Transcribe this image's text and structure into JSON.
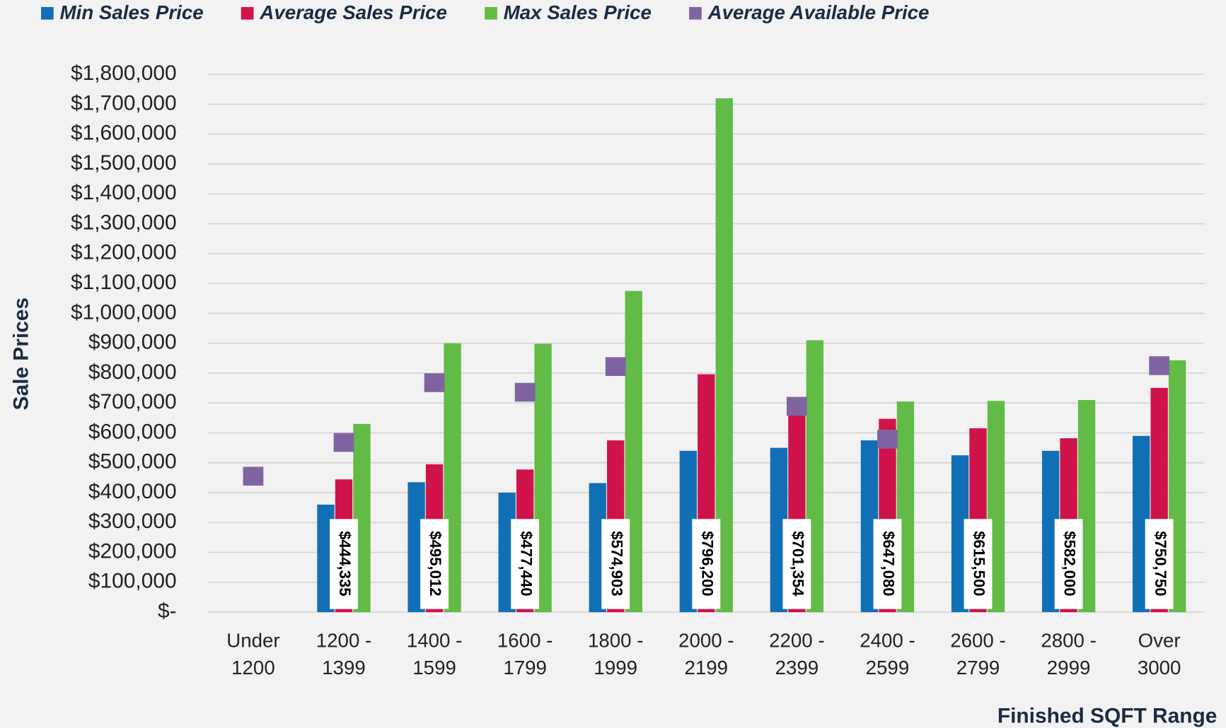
{
  "chart_data": {
    "type": "bar",
    "ylabel": "Sale Prices",
    "xlabel": "Finished SQFT Range",
    "categories": [
      [
        "Under",
        "1200"
      ],
      [
        "1200 -",
        "1399"
      ],
      [
        "1400 -",
        "1599"
      ],
      [
        "1600 -",
        "1799"
      ],
      [
        "1800 -",
        "1999"
      ],
      [
        "2000 -",
        "2199"
      ],
      [
        "2200 -",
        "2399"
      ],
      [
        "2400 -",
        "2599"
      ],
      [
        "2600 -",
        "2799"
      ],
      [
        "2800 -",
        "2999"
      ],
      [
        "Over",
        "3000"
      ]
    ],
    "series": [
      {
        "name": "Min Sales Price",
        "color": "#1170b5",
        "values": [
          null,
          360000,
          435000,
          400000,
          432000,
          540000,
          550000,
          575000,
          525000,
          540000,
          590000
        ]
      },
      {
        "name": "Average Sales Price",
        "color": "#d0134a",
        "values": [
          null,
          444335,
          495012,
          477440,
          574903,
          796200,
          701354,
          647080,
          615500,
          582000,
          750750
        ],
        "value_labels": [
          null,
          "$444,335",
          "$495,012",
          "$477,440",
          "$574,903",
          "$796,200",
          "$701,354",
          "$647,080",
          "$615,500",
          "$582,000",
          "$750,750"
        ]
      },
      {
        "name": "Max Sales Price",
        "color": "#62bb46",
        "values": [
          null,
          630000,
          900000,
          898000,
          1075000,
          1720000,
          910000,
          705000,
          707000,
          710000,
          843000
        ]
      },
      {
        "name": "Average Available Price",
        "color": "#8064a2",
        "marker": "square",
        "values": [
          455000,
          568000,
          768000,
          736000,
          822000,
          null,
          689000,
          579000,
          null,
          null,
          825000
        ]
      }
    ],
    "ylim": [
      0,
      1800000
    ],
    "yticks": [
      {
        "value": 0,
        "label": "$-"
      },
      {
        "value": 100000,
        "label": "$100,000"
      },
      {
        "value": 200000,
        "label": "$200,000"
      },
      {
        "value": 300000,
        "label": "$300,000"
      },
      {
        "value": 400000,
        "label": "$400,000"
      },
      {
        "value": 500000,
        "label": "$500,000"
      },
      {
        "value": 600000,
        "label": "$600,000"
      },
      {
        "value": 700000,
        "label": "$700,000"
      },
      {
        "value": 800000,
        "label": "$800,000"
      },
      {
        "value": 900000,
        "label": "$900,000"
      },
      {
        "value": 1000000,
        "label": "$1,000,000"
      },
      {
        "value": 1100000,
        "label": "$1,100,000"
      },
      {
        "value": 1200000,
        "label": "$1,200,000"
      },
      {
        "value": 1300000,
        "label": "$1,300,000"
      },
      {
        "value": 1400000,
        "label": "$1,400,000"
      },
      {
        "value": 1500000,
        "label": "$1,500,000"
      },
      {
        "value": 1600000,
        "label": "$1,600,000"
      },
      {
        "value": 1700000,
        "label": "$1,700,000"
      },
      {
        "value": 1800000,
        "label": "$1,800,000"
      }
    ],
    "grid": true,
    "legend": "top"
  }
}
